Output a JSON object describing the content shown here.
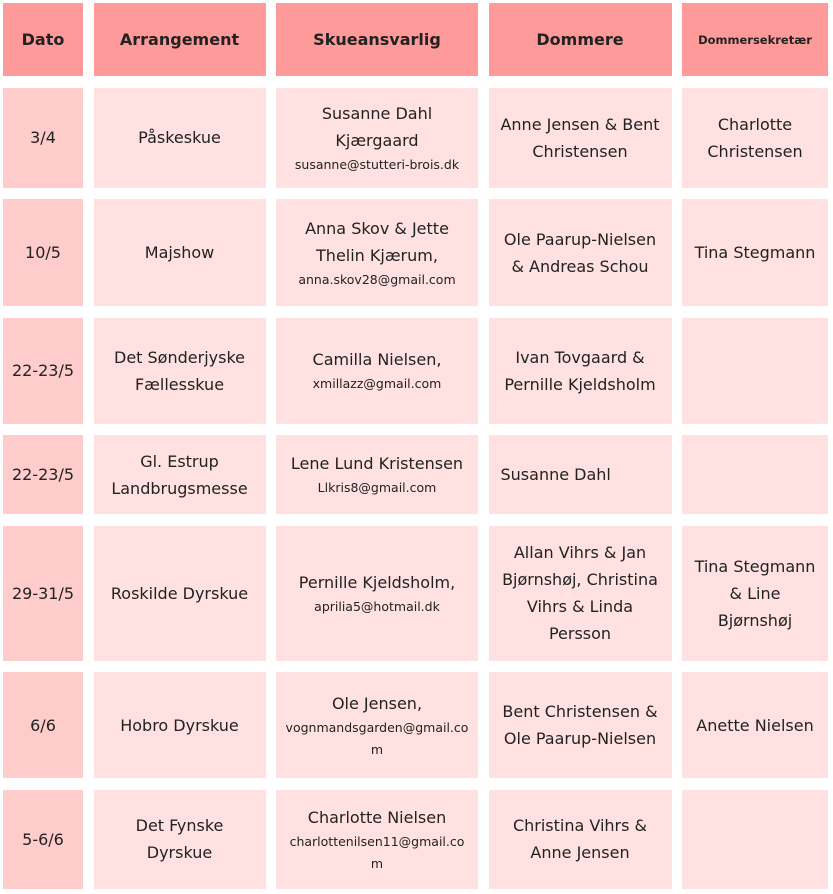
{
  "headers": [
    "Dato",
    "Arrangement",
    "Skueansvarlig",
    "Dommere",
    "Dommersekretær"
  ],
  "colors": {
    "header": "#ff9a9a",
    "date_cell": "#ffcccc",
    "cell": "#ffe1e1"
  },
  "rows": [
    {
      "dato": "3/4",
      "arrangement": "Påskeskue",
      "ansvarlig": "Susanne Dahl Kjærgaard",
      "email": "susanne@stutteri-brois.dk",
      "dommere": "Anne Jensen & Bent Christensen",
      "sekretaer": "Charlotte Christensen"
    },
    {
      "dato": "10/5",
      "arrangement": "Majshow",
      "ansvarlig": "Anna Skov & Jette Thelin Kjærum,",
      "email": "anna.skov28@gmail.com",
      "dommere": "Ole Paarup-Nielsen & Andreas Schou",
      "sekretaer": "Tina Stegmann"
    },
    {
      "dato": "22-23/5",
      "arrangement": "Det Sønderjyske Fællesskue",
      "ansvarlig": "Camilla Nielsen,",
      "email": "xmillazz@gmail.com",
      "dommere": "Ivan Tovgaard & Pernille Kjeldsholm",
      "sekretaer": ""
    },
    {
      "dato": "22-23/5",
      "arrangement": "Gl. Estrup Landbrugsmesse",
      "ansvarlig": "Lene Lund Kristensen",
      "email": "Llkris8@gmail.com",
      "dommere": "Susanne Dahl",
      "sekretaer": ""
    },
    {
      "dato": "29-31/5",
      "arrangement": "Roskilde Dyrskue",
      "ansvarlig": "Pernille Kjeldsholm,",
      "email": "aprilia5@hotmail.dk",
      "dommere": "Allan Vihrs & Jan Bjørnshøj, Christina Vihrs & Linda Persson",
      "sekretaer": "Tina Stegmann & Line Bjørnshøj"
    },
    {
      "dato": "6/6",
      "arrangement": "Hobro Dyrskue",
      "ansvarlig": "Ole Jensen,",
      "email": "vognmandsgarden@gmail.com",
      "dommere": "Bent Christensen & Ole Paarup-Nielsen",
      "sekretaer": "Anette Nielsen"
    },
    {
      "dato": "5-6/6",
      "arrangement": "Det Fynske Dyrskue",
      "ansvarlig": "Charlotte Nielsen",
      "email": "charlottenilsen11@gmail.com",
      "dommere": "Christina Vihrs & Anne Jensen",
      "sekretaer": ""
    }
  ]
}
